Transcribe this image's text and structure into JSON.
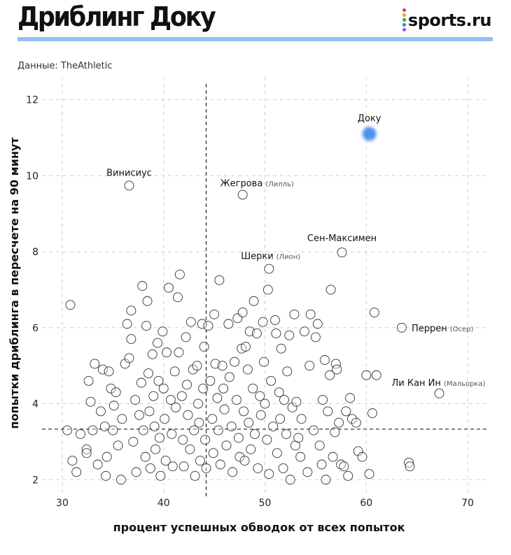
{
  "header": {
    "title": "Дриблинг Доку",
    "logo_text": "sports.ru",
    "logo_dot_colors": [
      "#e63946",
      "#f4a300",
      "#2aa84a",
      "#2f80ed",
      "#9b51e0"
    ],
    "rule_color": "#93c0f2"
  },
  "source": "Данные: TheAthletic",
  "colors": {
    "highlight": "#2f80ed",
    "point_stroke": "#333333",
    "grid": "#cfcfcf",
    "refline": "#222222"
  },
  "chart_data": {
    "type": "scatter",
    "xlabel": "процент успешных обводок от всех попыток",
    "ylabel": "попытки дриблинга в пересчете на 90 минут",
    "xlim": [
      28,
      72
    ],
    "ylim": [
      1.6,
      12.6
    ],
    "xticks": [
      30,
      40,
      50,
      60,
      70
    ],
    "yticks": [
      2,
      4,
      6,
      8,
      10,
      12
    ],
    "grid": true,
    "reference_lines": {
      "x": 44.2,
      "y": 3.33
    },
    "highlight": {
      "name": "Доку",
      "x": 60.3,
      "y": 11.1
    },
    "labeled_points": [
      {
        "name": "Винисиус",
        "club": "",
        "x": 36.6,
        "y": 9.74
      },
      {
        "name": "Жегрова",
        "club": "(Лилль)",
        "x": 47.8,
        "y": 9.5
      },
      {
        "name": "Сен-Максимен",
        "club": "",
        "x": 57.6,
        "y": 7.98
      },
      {
        "name": "Шерки",
        "club": "(Лион)",
        "x": 50.4,
        "y": 7.55
      },
      {
        "name": "Перрен",
        "club": "(Осер)",
        "x": 63.5,
        "y": 6.0
      },
      {
        "name": "Ли Кан Ин",
        "club": "(Мальорка)",
        "x": 67.2,
        "y": 4.27
      }
    ],
    "points": [
      [
        30.8,
        6.6
      ],
      [
        30.5,
        3.3
      ],
      [
        31.0,
        2.5
      ],
      [
        31.4,
        2.2
      ],
      [
        31.8,
        3.2
      ],
      [
        32.4,
        2.8
      ],
      [
        32.4,
        2.7
      ],
      [
        32.6,
        4.6
      ],
      [
        32.8,
        4.05
      ],
      [
        33.2,
        5.05
      ],
      [
        33.0,
        3.3
      ],
      [
        33.5,
        2.4
      ],
      [
        33.8,
        3.8
      ],
      [
        34.0,
        4.9
      ],
      [
        34.2,
        3.4
      ],
      [
        34.4,
        2.6
      ],
      [
        34.3,
        2.1
      ],
      [
        34.6,
        4.85
      ],
      [
        34.8,
        4.4
      ],
      [
        35.1,
        3.95
      ],
      [
        35.3,
        4.3
      ],
      [
        35.0,
        3.3
      ],
      [
        35.5,
        2.9
      ],
      [
        35.8,
        2.0
      ],
      [
        35.9,
        3.6
      ],
      [
        36.2,
        5.05
      ],
      [
        36.4,
        6.1
      ],
      [
        36.6,
        5.2
      ],
      [
        36.8,
        6.45
      ],
      [
        36.8,
        5.7
      ],
      [
        37.0,
        3.0
      ],
      [
        37.2,
        4.1
      ],
      [
        37.3,
        2.2
      ],
      [
        37.6,
        3.7
      ],
      [
        37.9,
        7.1
      ],
      [
        37.8,
        4.55
      ],
      [
        38.0,
        3.3
      ],
      [
        38.2,
        2.6
      ],
      [
        38.3,
        6.05
      ],
      [
        38.4,
        6.7
      ],
      [
        38.5,
        4.8
      ],
      [
        38.6,
        3.8
      ],
      [
        38.7,
        2.3
      ],
      [
        38.9,
        5.3
      ],
      [
        39.0,
        4.2
      ],
      [
        39.1,
        3.4
      ],
      [
        39.2,
        2.8
      ],
      [
        39.4,
        5.6
      ],
      [
        39.5,
        4.6
      ],
      [
        39.6,
        3.1
      ],
      [
        39.7,
        2.1
      ],
      [
        39.9,
        5.9
      ],
      [
        40.0,
        4.4
      ],
      [
        40.1,
        3.6
      ],
      [
        40.2,
        2.5
      ],
      [
        40.3,
        5.35
      ],
      [
        40.5,
        7.05
      ],
      [
        40.7,
        4.1
      ],
      [
        40.8,
        3.2
      ],
      [
        40.9,
        2.35
      ],
      [
        41.1,
        4.85
      ],
      [
        41.2,
        3.9
      ],
      [
        41.4,
        6.8
      ],
      [
        41.5,
        5.35
      ],
      [
        41.6,
        7.4
      ],
      [
        41.8,
        4.2
      ],
      [
        41.9,
        3.05
      ],
      [
        42.0,
        2.35
      ],
      [
        42.2,
        5.75
      ],
      [
        42.3,
        4.5
      ],
      [
        42.4,
        3.7
      ],
      [
        42.6,
        2.8
      ],
      [
        42.7,
        6.15
      ],
      [
        42.9,
        4.9
      ],
      [
        43.0,
        3.3
      ],
      [
        43.1,
        2.1
      ],
      [
        43.3,
        5.0
      ],
      [
        43.4,
        4.0
      ],
      [
        43.5,
        3.5
      ],
      [
        43.6,
        2.5
      ],
      [
        43.8,
        6.1
      ],
      [
        43.9,
        4.4
      ],
      [
        44.0,
        5.5
      ],
      [
        44.1,
        3.05
      ],
      [
        44.2,
        2.3
      ],
      [
        44.4,
        6.05
      ],
      [
        44.6,
        4.6
      ],
      [
        44.8,
        3.6
      ],
      [
        44.9,
        2.7
      ],
      [
        45.0,
        6.35
      ],
      [
        45.1,
        5.05
      ],
      [
        45.3,
        4.15
      ],
      [
        45.4,
        3.3
      ],
      [
        45.5,
        7.25
      ],
      [
        45.6,
        2.4
      ],
      [
        45.8,
        5.0
      ],
      [
        45.9,
        4.4
      ],
      [
        46.0,
        3.85
      ],
      [
        46.2,
        2.9
      ],
      [
        46.4,
        6.1
      ],
      [
        46.5,
        4.7
      ],
      [
        46.7,
        3.4
      ],
      [
        46.8,
        2.2
      ],
      [
        47.0,
        5.1
      ],
      [
        47.2,
        4.1
      ],
      [
        47.3,
        6.25
      ],
      [
        47.4,
        3.1
      ],
      [
        47.5,
        2.6
      ],
      [
        47.7,
        5.45
      ],
      [
        47.8,
        6.4
      ],
      [
        47.9,
        3.8
      ],
      [
        48.0,
        2.5
      ],
      [
        48.1,
        5.5
      ],
      [
        48.3,
        4.9
      ],
      [
        48.4,
        3.5
      ],
      [
        48.5,
        5.9
      ],
      [
        48.6,
        2.8
      ],
      [
        48.8,
        4.4
      ],
      [
        48.9,
        6.7
      ],
      [
        49.0,
        3.2
      ],
      [
        49.2,
        5.85
      ],
      [
        49.3,
        2.3
      ],
      [
        49.5,
        4.2
      ],
      [
        49.6,
        3.7
      ],
      [
        49.8,
        6.15
      ],
      [
        49.9,
        5.1
      ],
      [
        50.0,
        4.0
      ],
      [
        50.2,
        3.05
      ],
      [
        50.3,
        7.0
      ],
      [
        50.4,
        2.15
      ],
      [
        50.6,
        4.6
      ],
      [
        50.8,
        3.4
      ],
      [
        51.0,
        6.2
      ],
      [
        51.1,
        5.85
      ],
      [
        51.2,
        2.7
      ],
      [
        51.4,
        4.3
      ],
      [
        51.5,
        3.6
      ],
      [
        51.6,
        5.45
      ],
      [
        51.8,
        2.3
      ],
      [
        51.9,
        4.1
      ],
      [
        52.1,
        3.2
      ],
      [
        52.2,
        4.85
      ],
      [
        52.4,
        5.8
      ],
      [
        52.5,
        2.0
      ],
      [
        52.7,
        3.9
      ],
      [
        52.9,
        6.35
      ],
      [
        53.0,
        2.9
      ],
      [
        53.1,
        4.05
      ],
      [
        53.3,
        3.1
      ],
      [
        53.5,
        2.6
      ],
      [
        53.6,
        3.6
      ],
      [
        53.9,
        5.9
      ],
      [
        54.2,
        2.2
      ],
      [
        54.4,
        5.0
      ],
      [
        54.5,
        6.35
      ],
      [
        54.8,
        3.3
      ],
      [
        55.0,
        5.75
      ],
      [
        55.2,
        6.1
      ],
      [
        55.4,
        2.9
      ],
      [
        55.6,
        2.4
      ],
      [
        55.7,
        4.1
      ],
      [
        55.9,
        5.15
      ],
      [
        56.0,
        2.0
      ],
      [
        56.2,
        3.8
      ],
      [
        56.4,
        4.75
      ],
      [
        56.5,
        7.0
      ],
      [
        56.7,
        2.6
      ],
      [
        56.9,
        3.25
      ],
      [
        57.0,
        5.05
      ],
      [
        57.1,
        4.9
      ],
      [
        57.3,
        3.5
      ],
      [
        57.5,
        2.4
      ],
      [
        57.8,
        2.35
      ],
      [
        58.0,
        3.8
      ],
      [
        58.2,
        2.1
      ],
      [
        58.4,
        4.15
      ],
      [
        58.6,
        3.6
      ],
      [
        59.0,
        3.5
      ],
      [
        59.2,
        2.75
      ],
      [
        59.6,
        2.6
      ],
      [
        60.0,
        4.75
      ],
      [
        60.3,
        2.15
      ],
      [
        60.6,
        3.75
      ],
      [
        60.8,
        6.4
      ],
      [
        61.0,
        4.75
      ],
      [
        64.2,
        2.45
      ],
      [
        64.3,
        2.35
      ]
    ]
  }
}
